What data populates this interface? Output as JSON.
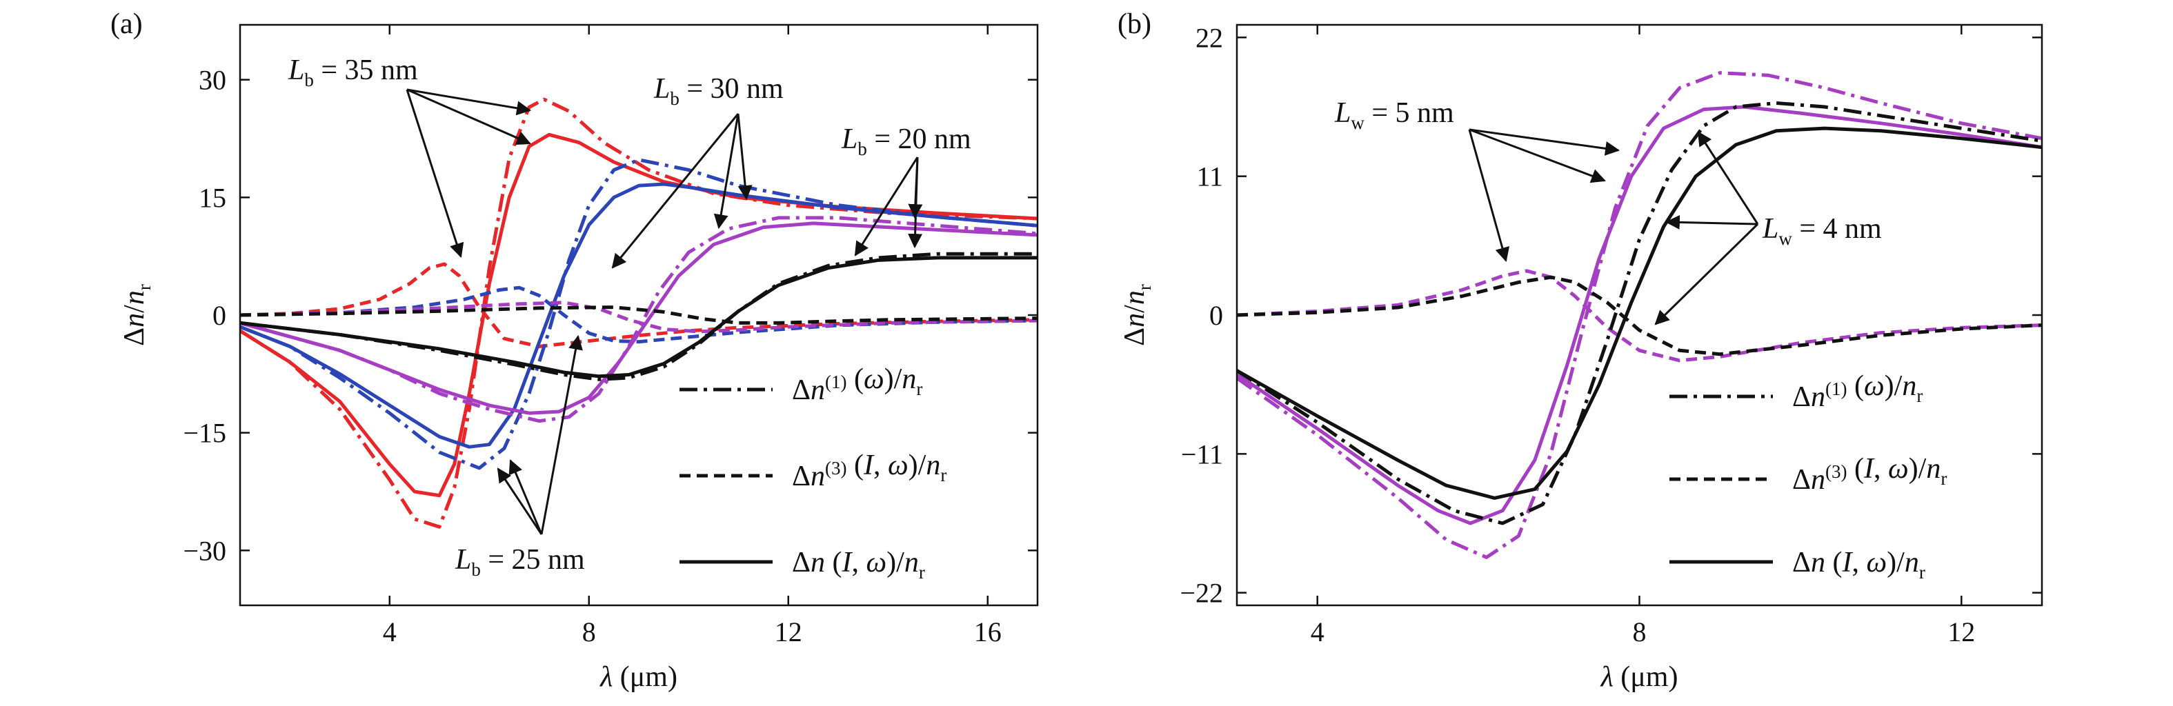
{
  "chart_data": [
    {
      "panel_label": "(a)",
      "type": "line",
      "xlabel": "λ (μm)",
      "ylabel": "Δn/nr",
      "xlim": [
        1,
        17
      ],
      "ylim": [
        -37,
        37
      ],
      "xticks": [
        4,
        8,
        12,
        16
      ],
      "yticks": [
        -30,
        -15,
        0,
        15,
        30
      ],
      "xtick_labels": [
        "4",
        "8",
        "12",
        "16"
      ],
      "ytick_labels": [
        "−30",
        "−15",
        "0",
        "15",
        "30"
      ],
      "legend": {
        "placement": "bottom-right",
        "entries": [
          {
            "style": "dash-dot",
            "main": "Δn",
            "sup": "(1)",
            "rest": " (ω)/n",
            "sub": "r"
          },
          {
            "style": "dashed",
            "main": "Δn",
            "sup": "(3)",
            "rest": " (I, ω)/n",
            "sub": "r"
          },
          {
            "style": "solid",
            "main": "Δn",
            "sup": "",
            "rest": " (I, ω)/n",
            "sub": "r"
          }
        ]
      },
      "annotations": [
        {
          "main": "L",
          "sub": "b",
          "rest": " = 35 nm"
        },
        {
          "main": "L",
          "sub": "b",
          "rest": " = 30 nm"
        },
        {
          "main": "L",
          "sub": "b",
          "rest": " = 20 nm"
        },
        {
          "main": "L",
          "sub": "b",
          "rest": " = 25 nm"
        }
      ],
      "series": [
        {
          "color": "#e8262a",
          "style": "solid",
          "x": [
            1,
            2,
            3,
            4,
            4.5,
            5,
            5.3,
            5.6,
            6,
            6.4,
            6.8,
            7.2,
            7.8,
            8.5,
            9.5,
            11,
            13,
            15,
            17
          ],
          "y": [
            -2,
            -6,
            -11,
            -19,
            -22.5,
            -23,
            -19,
            -10,
            4,
            15,
            21.5,
            23,
            22,
            19.5,
            17,
            15,
            13.8,
            13,
            12.3
          ]
        },
        {
          "color": "#e8262a",
          "style": "dash-dot",
          "x": [
            1,
            2,
            3,
            4,
            4.5,
            5,
            5.3,
            5.6,
            6,
            6.4,
            6.8,
            7.1,
            7.6,
            8.3,
            9.2,
            10.5,
            12,
            14,
            17
          ],
          "y": [
            -2,
            -6,
            -12,
            -21,
            -26,
            -27,
            -22,
            -12,
            6,
            20,
            26.5,
            27.5,
            26,
            22,
            18.5,
            15.5,
            14,
            13,
            12.3
          ]
        },
        {
          "color": "#e8262a",
          "style": "dashed",
          "x": [
            1,
            2,
            3,
            3.8,
            4.4,
            4.8,
            5.1,
            5.4,
            5.8,
            6.3,
            7,
            8,
            9,
            10,
            11,
            13,
            15,
            17
          ],
          "y": [
            0,
            0.2,
            0.8,
            2,
            4,
            6,
            6.5,
            5,
            1,
            -3,
            -4,
            -3.3,
            -2.6,
            -2,
            -1.6,
            -1.1,
            -0.8,
            -0.6
          ]
        },
        {
          "color": "#2b45b6",
          "style": "solid",
          "x": [
            1,
            2,
            3,
            4,
            5,
            5.6,
            6,
            6.5,
            7,
            7.5,
            8,
            8.5,
            9,
            9.5,
            10,
            11,
            13,
            15,
            17
          ],
          "y": [
            -1.5,
            -4,
            -7.5,
            -11.5,
            -15.5,
            -16.8,
            -16.5,
            -12,
            -3.5,
            5,
            11.5,
            15,
            16.5,
            16.7,
            16.3,
            15.3,
            13.7,
            12.5,
            11.4
          ]
        },
        {
          "color": "#2b45b6",
          "style": "dash-dot",
          "x": [
            1,
            2,
            3,
            4,
            5,
            5.8,
            6.3,
            6.8,
            7.2,
            7.6,
            8,
            8.5,
            9,
            10,
            11,
            13,
            15,
            17
          ],
          "y": [
            -1.5,
            -4,
            -8,
            -12.5,
            -17.5,
            -19.5,
            -17,
            -10,
            -2,
            7,
            14,
            18.5,
            19.8,
            18.5,
            16.5,
            14,
            12.5,
            11.4
          ]
        },
        {
          "color": "#2b45b6",
          "style": "dashed",
          "x": [
            1,
            3,
            4.5,
            5.5,
            6.2,
            6.6,
            7,
            7.5,
            8,
            8.5,
            9,
            10,
            11,
            13,
            15,
            17
          ],
          "y": [
            0,
            0.3,
            1,
            2,
            3.2,
            3.5,
            2.5,
            0,
            -2.3,
            -3.3,
            -3.4,
            -2.8,
            -2.2,
            -1.3,
            -0.9,
            -0.7
          ]
        },
        {
          "color": "#a53ec2",
          "style": "solid",
          "x": [
            1,
            3,
            4,
            5,
            6,
            6.8,
            7.4,
            8,
            8.6,
            9.2,
            9.8,
            10.5,
            11.5,
            12.5,
            14,
            15.5,
            17
          ],
          "y": [
            -1,
            -4.5,
            -7,
            -9.5,
            -11.5,
            -12.5,
            -12.3,
            -10.5,
            -6,
            -0.5,
            5,
            9,
            11.2,
            11.7,
            11.2,
            10.7,
            10.2
          ]
        },
        {
          "color": "#a53ec2",
          "style": "dash-dot",
          "x": [
            1,
            3,
            4,
            5,
            6,
            7,
            7.6,
            8.2,
            8.8,
            9.4,
            10,
            10.8,
            11.8,
            13,
            15,
            17
          ],
          "y": [
            -1,
            -4.5,
            -7,
            -10,
            -12,
            -13.5,
            -13,
            -10,
            -4,
            3,
            8,
            11,
            12.4,
            12.4,
            11.4,
            10.4
          ]
        },
        {
          "color": "#a53ec2",
          "style": "dashed",
          "x": [
            1,
            3,
            5,
            6.5,
            7.5,
            8.2,
            8.8,
            9.5,
            10.2,
            11,
            12,
            14,
            17
          ],
          "y": [
            0,
            0.3,
            0.9,
            1.4,
            1.6,
            0.8,
            -0.6,
            -1.8,
            -2.1,
            -1.9,
            -1.5,
            -1,
            -0.7
          ]
        },
        {
          "color": "#111111",
          "style": "solid",
          "x": [
            1,
            3,
            5,
            6.5,
            7.5,
            8.2,
            8.8,
            9.5,
            10.2,
            11,
            11.8,
            12.8,
            13.8,
            15,
            17
          ],
          "y": [
            -1,
            -2.5,
            -4.3,
            -6,
            -7.3,
            -7.8,
            -7.6,
            -6.2,
            -3.5,
            0.5,
            3.8,
            6,
            7,
            7.3,
            7.3
          ]
        },
        {
          "color": "#111111",
          "style": "dash-dot",
          "x": [
            1,
            3,
            5,
            6.5,
            7.5,
            8.2,
            8.8,
            9.5,
            10.2,
            11,
            11.8,
            12.8,
            13.8,
            15,
            17
          ],
          "y": [
            -1,
            -2.5,
            -4.5,
            -6.3,
            -7.6,
            -8.2,
            -8,
            -6.6,
            -3.7,
            0.5,
            4,
            6.3,
            7.3,
            7.8,
            7.8
          ]
        },
        {
          "color": "#111111",
          "style": "dashed",
          "x": [
            1,
            3,
            5,
            7,
            8.5,
            9.5,
            10.3,
            11,
            11.8,
            12.8,
            14,
            15.5,
            17
          ],
          "y": [
            0,
            0.2,
            0.5,
            0.9,
            1,
            0.4,
            -0.5,
            -1,
            -1,
            -0.8,
            -0.6,
            -0.5,
            -0.4
          ]
        }
      ]
    },
    {
      "panel_label": "(b)",
      "type": "line",
      "xlabel": "λ (μm)",
      "ylabel": "Δn/nr",
      "xlim": [
        3,
        13
      ],
      "ylim": [
        -23,
        23
      ],
      "xticks": [
        4,
        8,
        12
      ],
      "yticks": [
        -22,
        -11,
        0,
        11,
        22
      ],
      "xtick_labels": [
        "4",
        "8",
        "12"
      ],
      "ytick_labels": [
        "−22",
        "−11",
        "0",
        "11",
        "22"
      ],
      "legend": {
        "placement": "bottom-right",
        "entries": [
          {
            "style": "dash-dot",
            "main": "Δn",
            "sup": "(1)",
            "rest": " (ω)/n",
            "sub": "r"
          },
          {
            "style": "dashed",
            "main": "Δn",
            "sup": "(3)",
            "rest": " (I, ω)/n",
            "sub": "r"
          },
          {
            "style": "solid",
            "main": "Δn",
            "sup": "",
            "rest": " (I, ω)/n",
            "sub": "r"
          }
        ]
      },
      "annotations": [
        {
          "main": "L",
          "sub": "w",
          "rest": " = 5 nm"
        },
        {
          "main": "L",
          "sub": "w",
          "rest": " = 4 nm"
        }
      ],
      "series": [
        {
          "color": "#a53ec2",
          "style": "solid",
          "x": [
            3,
            4,
            5,
            5.5,
            5.9,
            6.3,
            6.7,
            7.1,
            7.5,
            7.9,
            8.3,
            8.8,
            9.3,
            10,
            11,
            12,
            13
          ],
          "y": [
            -4.7,
            -9,
            -13.5,
            -15.5,
            -16.5,
            -15.5,
            -11.5,
            -4,
            4.5,
            11,
            14.8,
            16.3,
            16.5,
            16,
            15.2,
            14.3,
            13.3
          ]
        },
        {
          "color": "#a53ec2",
          "style": "dash-dot",
          "x": [
            3,
            4,
            5,
            5.6,
            6.1,
            6.5,
            6.9,
            7.3,
            7.7,
            8.1,
            8.5,
            9,
            9.6,
            10.3,
            11,
            12,
            13
          ],
          "y": [
            -5,
            -9.5,
            -14.5,
            -17.8,
            -19.2,
            -17.5,
            -11,
            -1,
            8.5,
            15,
            18,
            19.2,
            19,
            18,
            16.8,
            15.2,
            14
          ]
        },
        {
          "color": "#a53ec2",
          "style": "dashed",
          "x": [
            3,
            4,
            5,
            5.8,
            6.3,
            6.6,
            6.9,
            7.2,
            7.6,
            8,
            8.5,
            9,
            10,
            11,
            12,
            13
          ],
          "y": [
            0,
            0.3,
            0.8,
            2,
            3.1,
            3.5,
            3,
            1.5,
            -1,
            -2.8,
            -3.6,
            -3.3,
            -2.2,
            -1.4,
            -1,
            -0.8
          ]
        },
        {
          "color": "#111111",
          "style": "solid",
          "x": [
            3,
            4,
            5,
            5.6,
            6.2,
            6.7,
            7.1,
            7.5,
            7.9,
            8.3,
            8.7,
            9.2,
            9.7,
            10.3,
            11,
            12,
            13
          ],
          "y": [
            -4.4,
            -8,
            -11.5,
            -13.5,
            -14.5,
            -13.8,
            -10.8,
            -5.5,
            1,
            7,
            11,
            13.5,
            14.6,
            14.8,
            14.6,
            14,
            13.3
          ]
        },
        {
          "color": "#111111",
          "style": "dash-dot",
          "x": [
            3,
            4,
            5,
            5.7,
            6.3,
            6.8,
            7.2,
            7.6,
            8,
            8.4,
            8.8,
            9.2,
            9.7,
            10.3,
            11,
            12,
            13
          ],
          "y": [
            -4.4,
            -8.5,
            -13,
            -15.5,
            -16.5,
            -15,
            -9.5,
            -2,
            6,
            11.5,
            15,
            16.5,
            16.8,
            16.5,
            15.8,
            14.8,
            13.8
          ]
        },
        {
          "color": "#111111",
          "style": "dashed",
          "x": [
            3,
            4,
            5,
            5.8,
            6.5,
            6.9,
            7.2,
            7.6,
            8,
            8.5,
            9,
            10,
            11,
            12,
            13
          ],
          "y": [
            0,
            0.2,
            0.6,
            1.5,
            2.6,
            3,
            2.6,
            1,
            -1.2,
            -2.8,
            -3.1,
            -2.4,
            -1.6,
            -1.1,
            -0.8
          ]
        }
      ]
    }
  ]
}
